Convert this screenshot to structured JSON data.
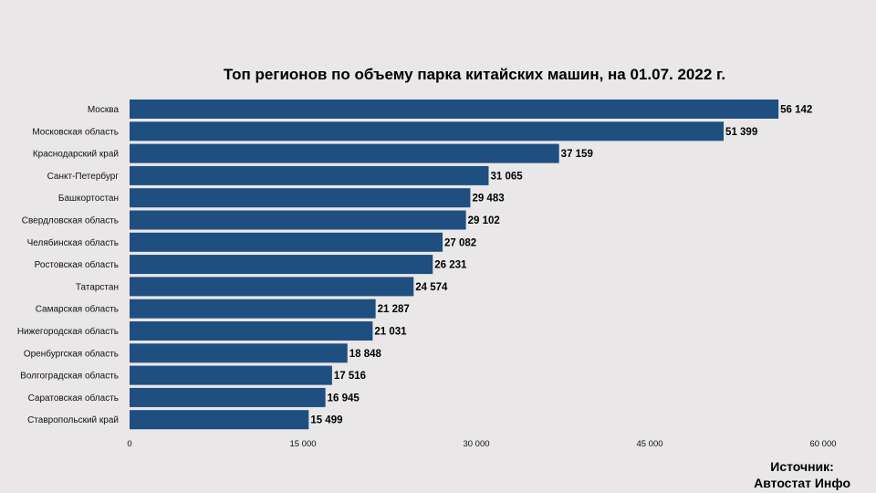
{
  "chart_data": {
    "type": "bar",
    "orientation": "horizontal",
    "title": "Топ регионов по объему парка китайских машин, на 01.07. 2022 г.",
    "categories": [
      "Москва",
      "Московская область",
      "Краснодарский край",
      "Санкт-Петербург",
      "Башкортостан",
      "Свердловская область",
      "Челябинская область",
      "Ростовская область",
      "Татарстан",
      "Самарская область",
      "Нижегородская область",
      "Оренбургская область",
      "Волгоградская область",
      "Саратовская область",
      "Ставропольский край"
    ],
    "values": [
      56142,
      51399,
      37159,
      31065,
      29483,
      29102,
      27082,
      26231,
      24574,
      21287,
      21031,
      18848,
      17516,
      16945,
      15499
    ],
    "value_labels": [
      "56 142",
      "51 399",
      "37 159",
      "31 065",
      "29 483",
      "29 102",
      "27 082",
      "26 231",
      "24 574",
      "21 287",
      "21 031",
      "18 848",
      "17 516",
      "16 945",
      "15 499"
    ],
    "xlim": [
      0,
      60000
    ],
    "xticks": [
      0,
      15000,
      30000,
      45000,
      60000
    ],
    "xtick_labels": [
      "0",
      "15 000",
      "30 000",
      "45 000",
      "60 000"
    ],
    "bar_color": "#1f4e80",
    "background_color": "#e9e7e8",
    "grid": false
  },
  "source": {
    "line1": "Источник:",
    "line2": "Автостат Инфо"
  }
}
